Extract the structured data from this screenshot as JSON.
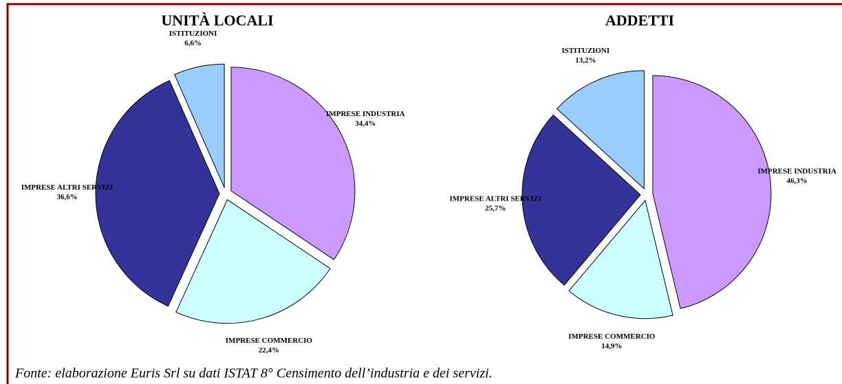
{
  "chart_data": [
    {
      "type": "pie",
      "title": "UNITÀ LOCALI",
      "categories": [
        "IMPRESE INDUSTRIA",
        "IMPRESE COMMERCIO",
        "IMPRESE ALTRI SERVIZI",
        "ISTITUZIONI"
      ],
      "values": [
        34.4,
        22.4,
        36.6,
        6.6
      ],
      "value_labels": [
        "34,4%",
        "22,4%",
        "36,6%",
        "6,6%"
      ],
      "colors": [
        "#cc99ff",
        "#ccffff",
        "#333399",
        "#99ccff"
      ]
    },
    {
      "type": "pie",
      "title": "ADDETTI",
      "categories": [
        "IMPRESE INDUSTRIA",
        "IMPRESE COMMERCIO",
        "IMPRESE ALTRI SERVIZI",
        "ISTITUZIONI"
      ],
      "values": [
        46.3,
        14.9,
        25.7,
        13.2
      ],
      "value_labels": [
        "46,3%",
        "14,9%",
        "25,7%",
        "13,2%"
      ],
      "colors": [
        "#cc99ff",
        "#ccffff",
        "#333399",
        "#99ccff"
      ]
    }
  ],
  "caption": "Fonte: elaborazione Euris Srl su dati ISTAT 8° Censimento dell’industria e dei servizi."
}
